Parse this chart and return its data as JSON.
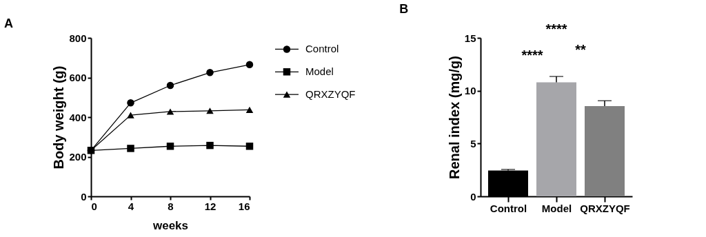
{
  "chart_data": [
    {
      "type": "line",
      "title": "A",
      "xlabel": "weeks",
      "ylabel": "Body weight (g)",
      "x": [
        0,
        4,
        8,
        12,
        16
      ],
      "xlim": [
        0,
        16
      ],
      "xticks": [
        0,
        4,
        8,
        12,
        16
      ],
      "ylim": [
        0,
        800
      ],
      "yticks": [
        0,
        200,
        400,
        600,
        800
      ],
      "grid": false,
      "legend": "right",
      "line_style": "solid",
      "series": [
        {
          "name": "Control",
          "color": "#000000",
          "marker": "circle",
          "values": [
            232,
            472,
            560,
            625,
            665
          ]
        },
        {
          "name": "Model",
          "color": "#000000",
          "marker": "square",
          "values": [
            232,
            242,
            253,
            257,
            253
          ]
        },
        {
          "name": "QRXZYQF",
          "color": "#000000",
          "marker": "triangle",
          "values": [
            232,
            410,
            428,
            432,
            437
          ]
        }
      ]
    },
    {
      "type": "bar",
      "title": "B",
      "ylabel": "Renal index (mg/g)",
      "categories": [
        "Control",
        "Model",
        "QRXZYQF"
      ],
      "values": [
        2.45,
        10.8,
        8.55
      ],
      "errors": [
        0.1,
        0.55,
        0.5
      ],
      "colors": [
        "#000000",
        "#a6a6aa",
        "#808080"
      ],
      "ylim": [
        0,
        15
      ],
      "yticks": [
        0,
        5,
        10,
        15
      ],
      "grid": false,
      "annotations": [
        "****",
        "****",
        "**"
      ]
    }
  ]
}
